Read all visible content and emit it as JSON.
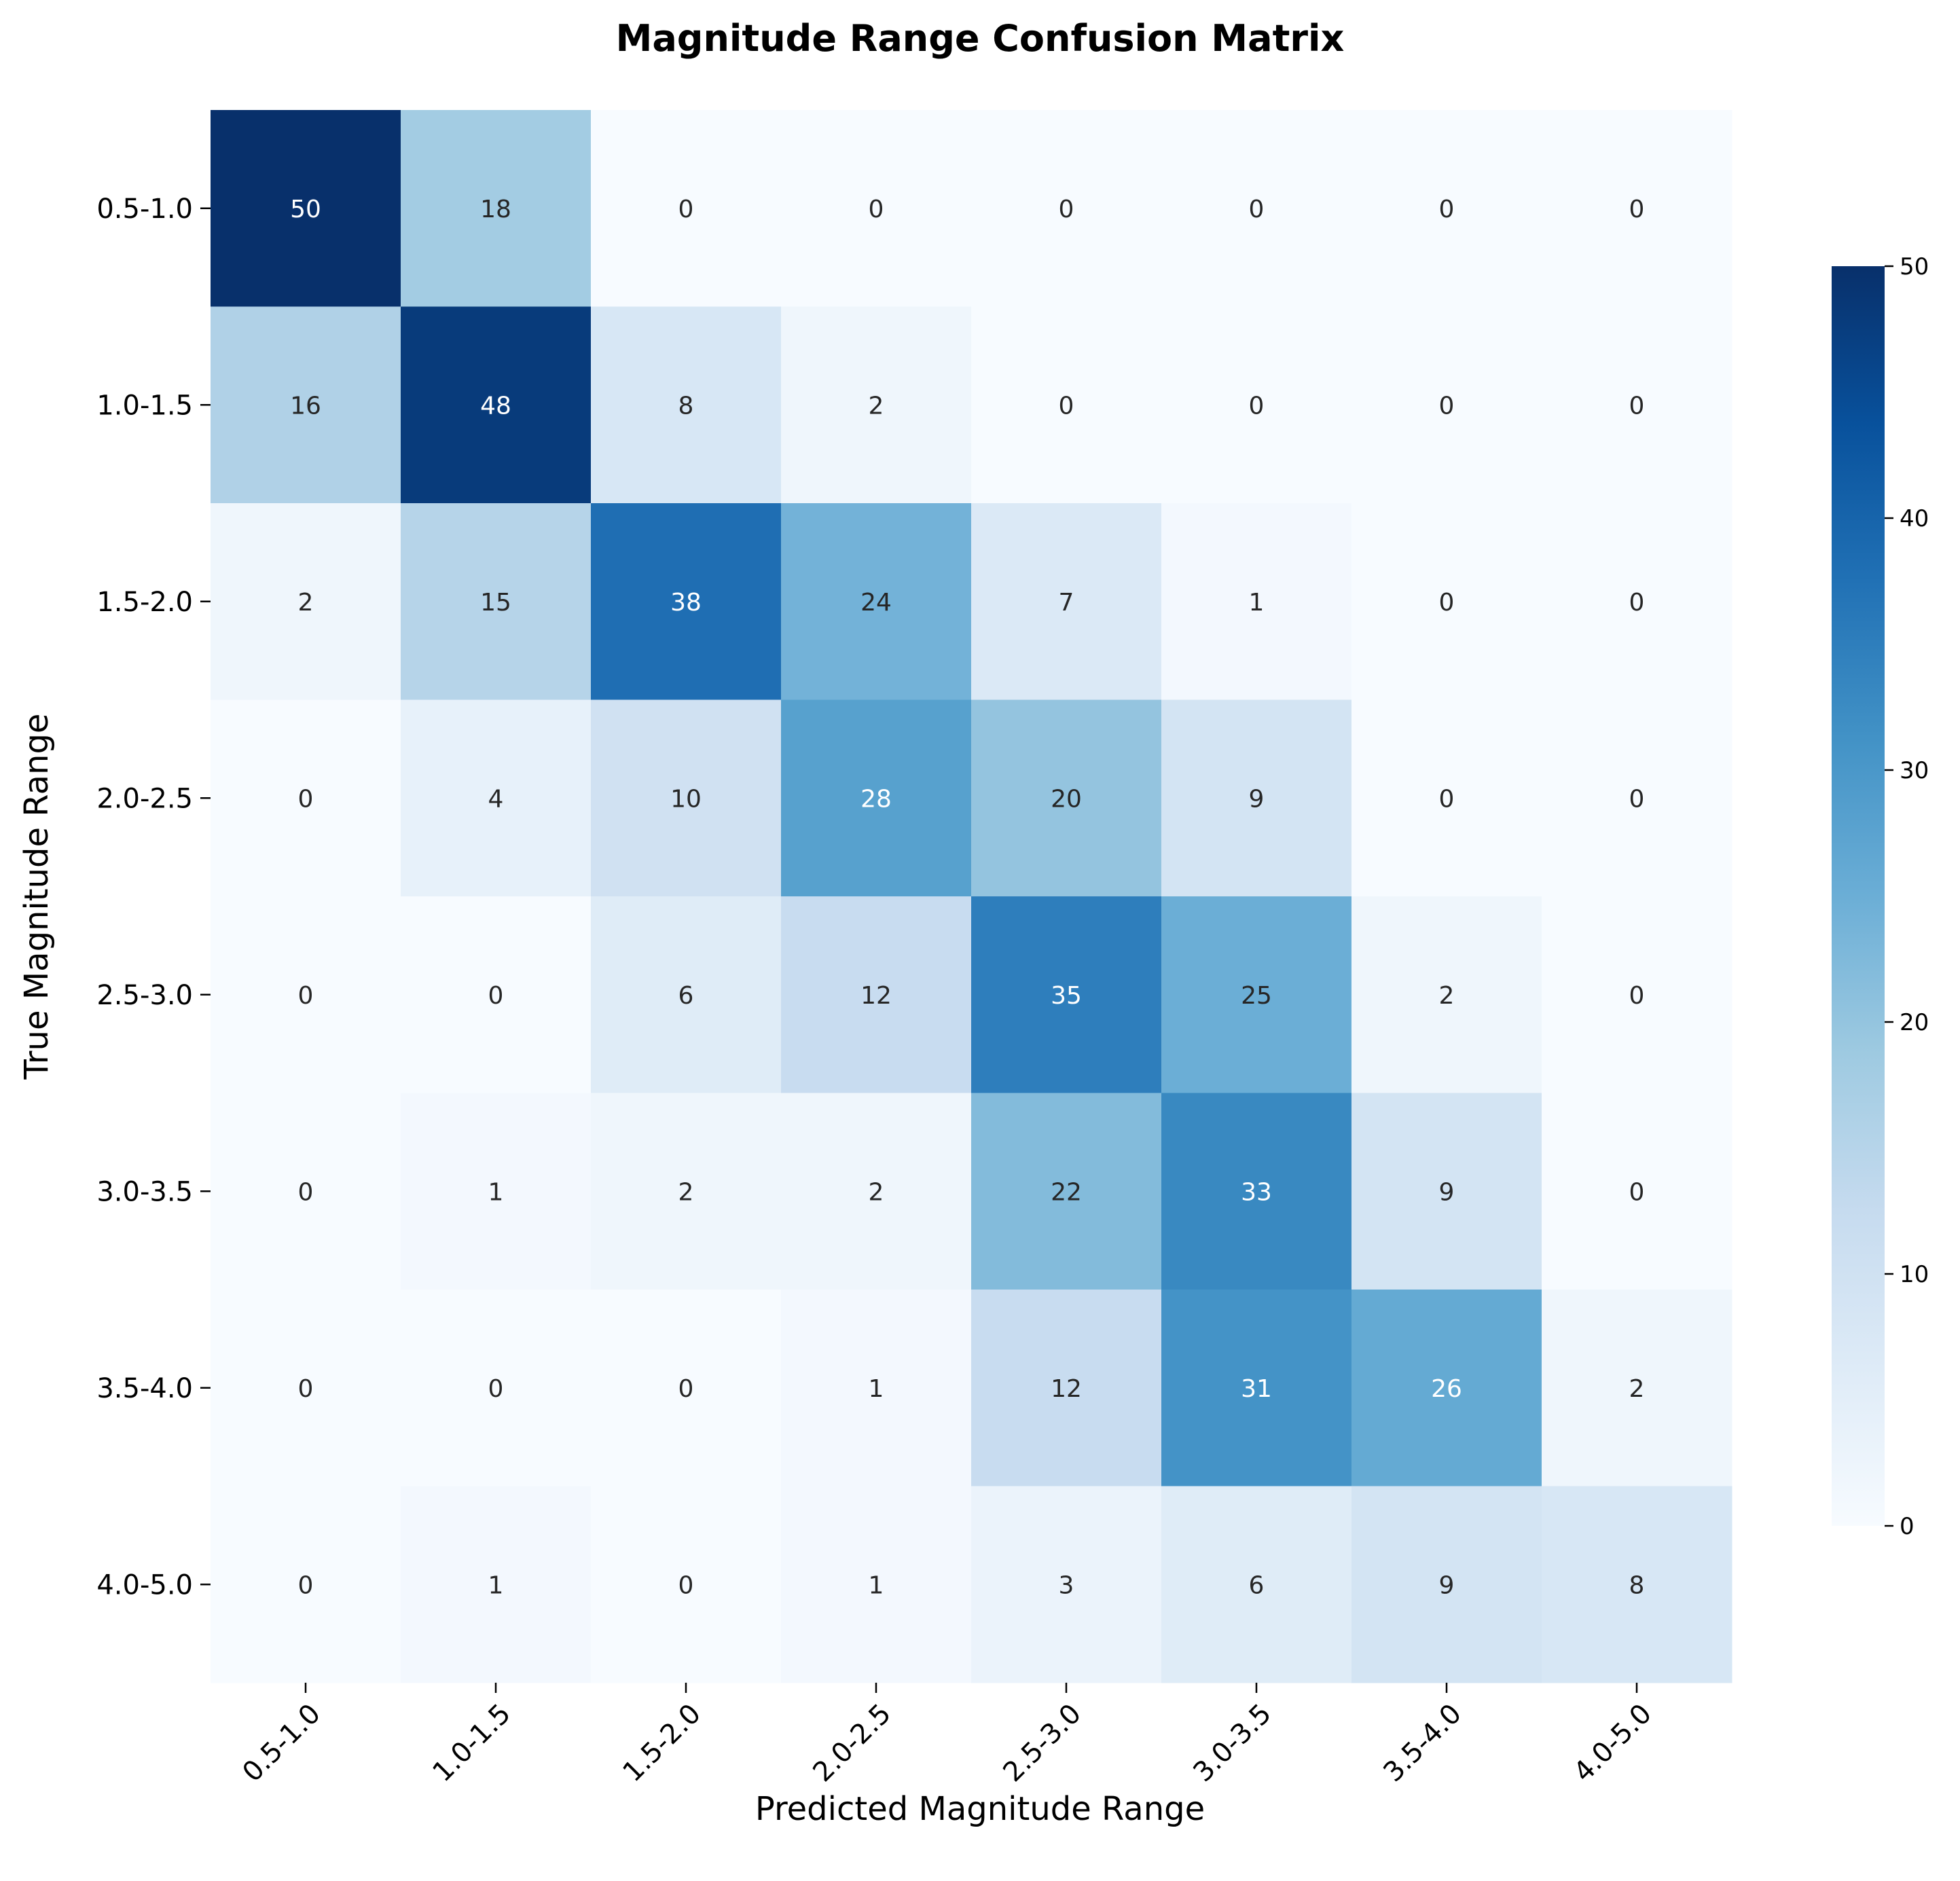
{
  "chart_data": {
    "type": "heatmap",
    "title": "Magnitude Range Confusion Matrix",
    "xlabel": "Predicted Magnitude Range",
    "ylabel": "True Magnitude Range",
    "x_categories": [
      "0.5-1.0",
      "1.0-1.5",
      "1.5-2.0",
      "2.0-2.5",
      "2.5-3.0",
      "3.0-3.5",
      "3.5-4.0",
      "4.0-5.0"
    ],
    "y_categories": [
      "0.5-1.0",
      "1.0-1.5",
      "1.5-2.0",
      "2.0-2.5",
      "2.5-3.0",
      "3.0-3.5",
      "3.5-4.0",
      "4.0-5.0"
    ],
    "values": [
      [
        50,
        18,
        0,
        0,
        0,
        0,
        0,
        0
      ],
      [
        16,
        48,
        8,
        2,
        0,
        0,
        0,
        0
      ],
      [
        2,
        15,
        38,
        24,
        7,
        1,
        0,
        0
      ],
      [
        0,
        4,
        10,
        28,
        20,
        9,
        0,
        0
      ],
      [
        0,
        0,
        6,
        12,
        35,
        25,
        2,
        0
      ],
      [
        0,
        1,
        2,
        2,
        22,
        33,
        9,
        0
      ],
      [
        0,
        0,
        0,
        1,
        12,
        31,
        26,
        2
      ],
      [
        0,
        1,
        0,
        1,
        3,
        6,
        9,
        8
      ]
    ],
    "colormap": "Blues",
    "vmin": 0,
    "vmax": 50,
    "colorbar_ticks": [
      0,
      10,
      20,
      30,
      40,
      50
    ]
  }
}
